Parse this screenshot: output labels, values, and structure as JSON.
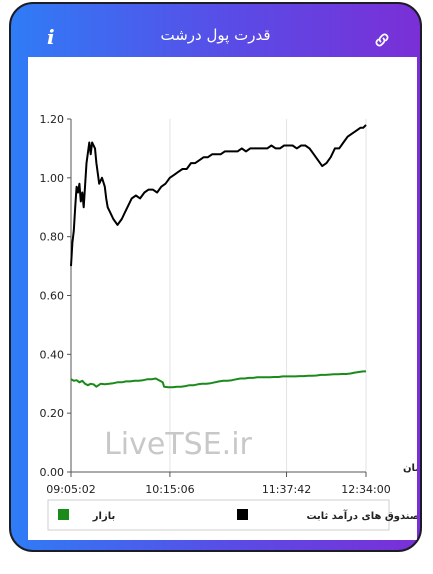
{
  "header": {
    "title": "قدرت پول درشت",
    "info_icon": "info-icon",
    "link_icon": "link-icon"
  },
  "colors": {
    "gradient_start": "#2f7cf6",
    "gradient_end": "#7a2fd6",
    "series_fixed_income": "#000000",
    "series_market": "#1a8a1a"
  },
  "watermark": "LiveTSE.ir",
  "chart_data": {
    "type": "line",
    "title": "",
    "xlabel": "زمان",
    "ylabel": "",
    "ylim": [
      0,
      1.2
    ],
    "yticks": [
      "0.00",
      "0.20",
      "0.40",
      "0.60",
      "0.80",
      "1.00",
      "1.20"
    ],
    "xticks": [
      "09:05:02",
      "10:15:06",
      "11:37:42",
      "12:34:00"
    ],
    "xtick_minutes": [
      545.03,
      615.1,
      697.7,
      754.0
    ],
    "xlim_minutes": [
      545.03,
      754.0
    ],
    "grid": "vertical at x ticks",
    "legend_position": "bottom",
    "series": [
      {
        "name": "صندوق های درآمد ثابت",
        "color": "#000000",
        "x": [
          545.03,
          546.0,
          547.0,
          548.0,
          549.0,
          550.0,
          551.0,
          552.0,
          553.0,
          554.0,
          556.0,
          558.0,
          559.0,
          560.0,
          562.0,
          563.0,
          565.0,
          567.0,
          569.0,
          570.0,
          571.0,
          573.0,
          575.0,
          578.0,
          581.0,
          583.0,
          585.0,
          588.0,
          591.0,
          594.0,
          597.0,
          600.0,
          603.0,
          606.0,
          609.0,
          612.0,
          615.0,
          618.0,
          621.0,
          624.0,
          627.0,
          630.0,
          633.0,
          636.0,
          639.0,
          642.0,
          645.0,
          648.0,
          651.0,
          654.0,
          657.0,
          660.0,
          663.0,
          666.0,
          669.0,
          672.0,
          675.0,
          678.0,
          681.0,
          684.0,
          687.0,
          690.0,
          693.0,
          696.0,
          699.0,
          702.0,
          705.0,
          708.0,
          711.0,
          714.0,
          717.0,
          720.0,
          723.0,
          726.0,
          729.0,
          732.0,
          735.0,
          738.0,
          741.0,
          744.0,
          747.0,
          750.0,
          752.0,
          754.0
        ],
        "values": [
          0.7,
          0.78,
          0.82,
          0.9,
          0.97,
          0.95,
          0.98,
          0.92,
          0.95,
          0.9,
          1.05,
          1.12,
          1.08,
          1.12,
          1.1,
          1.05,
          0.98,
          1.0,
          0.97,
          0.93,
          0.9,
          0.88,
          0.86,
          0.84,
          0.86,
          0.88,
          0.9,
          0.93,
          0.94,
          0.93,
          0.95,
          0.96,
          0.96,
          0.95,
          0.97,
          0.98,
          1.0,
          1.01,
          1.02,
          1.03,
          1.03,
          1.05,
          1.05,
          1.06,
          1.07,
          1.07,
          1.08,
          1.08,
          1.08,
          1.09,
          1.09,
          1.09,
          1.09,
          1.1,
          1.09,
          1.1,
          1.1,
          1.1,
          1.1,
          1.1,
          1.11,
          1.1,
          1.1,
          1.11,
          1.11,
          1.11,
          1.1,
          1.11,
          1.11,
          1.1,
          1.08,
          1.06,
          1.04,
          1.05,
          1.07,
          1.1,
          1.1,
          1.12,
          1.14,
          1.15,
          1.16,
          1.17,
          1.17,
          1.18
        ]
      },
      {
        "name": "بازار",
        "color": "#1a8a1a",
        "x": [
          545.03,
          547.0,
          549.0,
          551.0,
          553.0,
          555.0,
          557.0,
          559.0,
          561.0,
          563.0,
          566.0,
          569.0,
          572.0,
          575.0,
          578.0,
          581.0,
          584.0,
          587.0,
          590.0,
          593.0,
          596.0,
          599.0,
          602.0,
          605.0,
          608.0,
          610.0,
          611.0,
          614.0,
          617.0,
          620.0,
          623.0,
          626.0,
          629.0,
          632.0,
          635.0,
          638.0,
          641.0,
          644.0,
          647.0,
          650.0,
          653.0,
          656.0,
          659.0,
          662.0,
          665.0,
          668.0,
          671.0,
          674.0,
          677.0,
          680.0,
          683.0,
          686.0,
          689.0,
          692.0,
          695.0,
          698.0,
          701.0,
          704.0,
          707.0,
          710.0,
          713.0,
          716.0,
          719.0,
          722.0,
          725.0,
          728.0,
          731.0,
          734.0,
          737.0,
          740.0,
          743.0,
          746.0,
          749.0,
          752.0,
          754.0
        ],
        "values": [
          0.315,
          0.31,
          0.312,
          0.305,
          0.31,
          0.3,
          0.295,
          0.3,
          0.298,
          0.29,
          0.3,
          0.298,
          0.3,
          0.302,
          0.305,
          0.305,
          0.308,
          0.308,
          0.31,
          0.31,
          0.312,
          0.315,
          0.315,
          0.318,
          0.31,
          0.305,
          0.29,
          0.288,
          0.288,
          0.29,
          0.29,
          0.292,
          0.295,
          0.295,
          0.298,
          0.3,
          0.3,
          0.302,
          0.305,
          0.308,
          0.31,
          0.31,
          0.312,
          0.315,
          0.318,
          0.318,
          0.32,
          0.32,
          0.322,
          0.322,
          0.322,
          0.322,
          0.323,
          0.323,
          0.325,
          0.325,
          0.325,
          0.325,
          0.326,
          0.326,
          0.327,
          0.327,
          0.328,
          0.33,
          0.33,
          0.331,
          0.332,
          0.332,
          0.333,
          0.333,
          0.335,
          0.338,
          0.34,
          0.342,
          0.342
        ]
      }
    ]
  }
}
